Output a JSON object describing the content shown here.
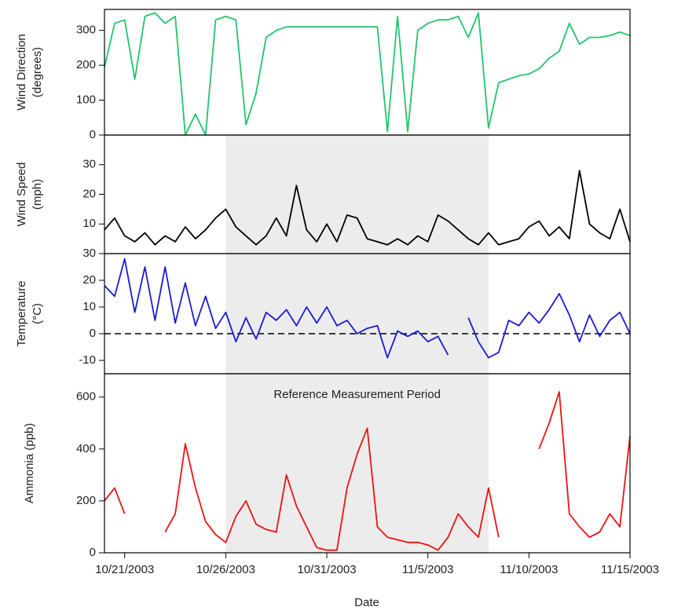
{
  "chart_data": {
    "type": "line",
    "xlabel": "Date",
    "annotation": "Reference Measurement Period",
    "shade_range": [
      "2003-10-26T00:00",
      "2003-11-08T00:00"
    ],
    "xlim": [
      "2003-10-20T00:00",
      "2003-11-15T00:00"
    ],
    "xticks": [
      {
        "value": "2003-10-21T00:00",
        "label": "10/21/2003"
      },
      {
        "value": "2003-10-26T00:00",
        "label": "10/26/2003"
      },
      {
        "value": "2003-10-31T00:00",
        "label": "10/31/2003"
      },
      {
        "value": "2003-11-05T00:00",
        "label": "11/5/2003"
      },
      {
        "value": "2003-11-10T00:00",
        "label": "11/10/2003"
      },
      {
        "value": "2003-11-15T00:00",
        "label": "11/15/2003"
      }
    ],
    "x": [
      "2003-10-20T00:00",
      "2003-10-20T12:00",
      "2003-10-21T00:00",
      "2003-10-21T12:00",
      "2003-10-22T00:00",
      "2003-10-22T12:00",
      "2003-10-23T00:00",
      "2003-10-23T12:00",
      "2003-10-24T00:00",
      "2003-10-24T12:00",
      "2003-10-25T00:00",
      "2003-10-25T12:00",
      "2003-10-26T00:00",
      "2003-10-26T12:00",
      "2003-10-27T00:00",
      "2003-10-27T12:00",
      "2003-10-28T00:00",
      "2003-10-28T12:00",
      "2003-10-29T00:00",
      "2003-10-29T12:00",
      "2003-10-30T00:00",
      "2003-10-30T12:00",
      "2003-10-31T00:00",
      "2003-10-31T12:00",
      "2003-11-01T00:00",
      "2003-11-01T12:00",
      "2003-11-02T00:00",
      "2003-11-02T12:00",
      "2003-11-03T00:00",
      "2003-11-03T12:00",
      "2003-11-04T00:00",
      "2003-11-04T12:00",
      "2003-11-05T00:00",
      "2003-11-05T12:00",
      "2003-11-06T00:00",
      "2003-11-06T12:00",
      "2003-11-07T00:00",
      "2003-11-07T12:00",
      "2003-11-08T00:00",
      "2003-11-08T12:00",
      "2003-11-09T00:00",
      "2003-11-09T12:00",
      "2003-11-10T00:00",
      "2003-11-10T12:00",
      "2003-11-11T00:00",
      "2003-11-11T12:00",
      "2003-11-12T00:00",
      "2003-11-12T12:00",
      "2003-11-13T00:00",
      "2003-11-13T12:00",
      "2003-11-14T00:00",
      "2003-11-14T12:00",
      "2003-11-15T00:00"
    ],
    "panels": [
      {
        "ylabel": [
          "Wind Direction",
          "(degrees)"
        ],
        "ylim": [
          0,
          360
        ],
        "yticks": [
          0,
          100,
          200,
          300
        ],
        "shaded": false,
        "series": [
          {
            "color": "#22c46a",
            "values": [
              195,
              320,
              330,
              160,
              340,
              350,
              320,
              340,
              0,
              60,
              0,
              330,
              340,
              330,
              30,
              120,
              280,
              300,
              310,
              310,
              310,
              310,
              310,
              310,
              310,
              310,
              310,
              310,
              10,
              340,
              10,
              300,
              320,
              330,
              330,
              340,
              280,
              350,
              20,
              150,
              160,
              170,
              175,
              190,
              220,
              240,
              320,
              260,
              280,
              280,
              285,
              295,
              285
            ]
          }
        ]
      },
      {
        "ylabel": [
          "Wind Speed",
          "(mph)"
        ],
        "ylim": [
          0,
          40
        ],
        "yticks": [
          10,
          20,
          30
        ],
        "shaded": true,
        "series": [
          {
            "color": "#000000",
            "values": [
              8,
              12,
              6,
              4,
              7,
              3,
              6,
              4,
              9,
              5,
              8,
              12,
              15,
              9,
              6,
              3,
              6,
              12,
              6,
              23,
              8,
              4,
              10,
              4,
              13,
              12,
              5,
              4,
              3,
              5,
              3,
              6,
              4,
              13,
              11,
              8,
              5,
              3,
              7,
              3,
              4,
              5,
              9,
              11,
              6,
              9,
              5,
              28,
              10,
              7,
              5,
              15,
              4
            ]
          }
        ]
      },
      {
        "ylabel": [
          "Temperature",
          "(°C)"
        ],
        "ylim": [
          -15,
          30
        ],
        "yticks": [
          -10,
          0,
          10,
          20,
          30
        ],
        "shaded": true,
        "zero_line": true,
        "series": [
          {
            "color": "#1a1ad6",
            "values": [
              18,
              14,
              28,
              8,
              25,
              5,
              25,
              4,
              19,
              3,
              14,
              2,
              8,
              -3,
              6,
              -2,
              8,
              5,
              9,
              3,
              10,
              4,
              10,
              3,
              5,
              0,
              2,
              3,
              -9,
              1,
              -1,
              1,
              -3,
              -1,
              -8,
              null,
              6,
              -3,
              -9,
              -7,
              5,
              3,
              8,
              4,
              9,
              15,
              7,
              -3,
              7,
              -1,
              5,
              8,
              0
            ]
          }
        ]
      },
      {
        "ylabel": [
          "Ammonia (ppb)"
        ],
        "ylim": [
          0,
          690
        ],
        "yticks": [
          0,
          200,
          400,
          600
        ],
        "shaded": true,
        "series": [
          {
            "color": "#ee1111",
            "values": [
              200,
              250,
              150,
              null,
              null,
              null,
              80,
              150,
              420,
              250,
              120,
              70,
              40,
              140,
              200,
              110,
              90,
              80,
              300,
              180,
              100,
              20,
              10,
              10,
              250,
              380,
              480,
              100,
              60,
              50,
              40,
              40,
              30,
              10,
              60,
              150,
              100,
              60,
              250,
              60,
              null,
              null,
              null,
              400,
              500,
              620,
              150,
              100,
              60,
              80,
              150,
              100,
              450
            ]
          }
        ]
      }
    ]
  }
}
